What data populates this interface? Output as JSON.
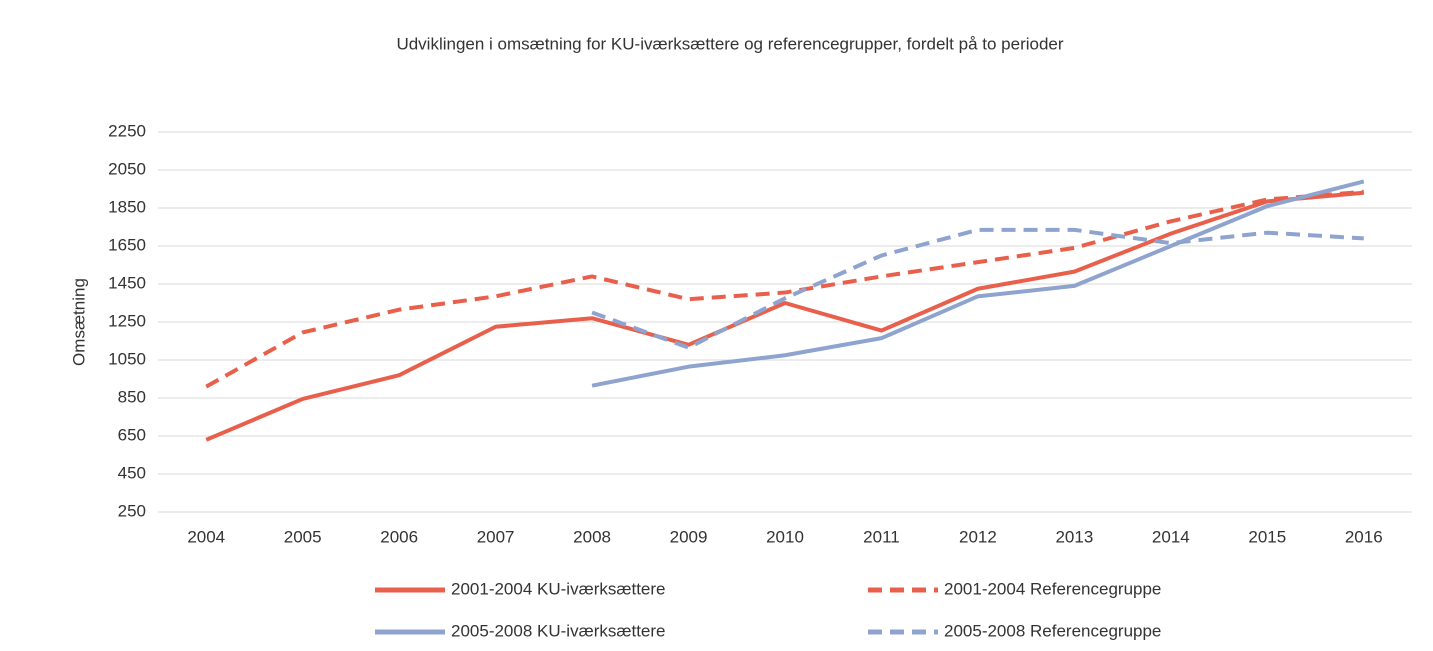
{
  "chart_data": {
    "type": "line",
    "title": "Udviklingen i omsætning for KU-iværksættere og referencegrupper, fordelt på to perioder",
    "y_label": "Omsætning",
    "categories": [
      "2004",
      "2005",
      "2006",
      "2007",
      "2008",
      "2009",
      "2010",
      "2011",
      "2012",
      "2013",
      "2014",
      "2015",
      "2016"
    ],
    "series": [
      {
        "name": "2001-2004 KU-iværksættere",
        "color": "#e8604c",
        "dashed": false,
        "values": [
          630,
          845,
          970,
          1225,
          1270,
          1130,
          1350,
          1205,
          1425,
          1515,
          1715,
          1885,
          1930
        ]
      },
      {
        "name": "2001-2004 Referencegruppe",
        "color": "#e8604c",
        "dashed": true,
        "values": [
          910,
          1195,
          1315,
          1385,
          1490,
          1370,
          1405,
          1490,
          1565,
          1640,
          1780,
          1895,
          1935
        ]
      },
      {
        "name": "2005-2008 KU-iværksættere",
        "color": "#8fa3cf",
        "dashed": false,
        "values": [
          null,
          null,
          null,
          null,
          915,
          1015,
          1075,
          1165,
          1385,
          1440,
          1650,
          1860,
          1990
        ]
      },
      {
        "name": "2005-2008 Referencegruppe",
        "color": "#8fa3cf",
        "dashed": true,
        "values": [
          null,
          null,
          null,
          null,
          1300,
          1115,
          1375,
          1600,
          1735,
          1735,
          1665,
          1720,
          1690
        ]
      }
    ],
    "ylim": [
      250,
      2250
    ],
    "yticks": [
      250,
      450,
      650,
      850,
      1050,
      1250,
      1450,
      1650,
      1850,
      2050,
      2250
    ],
    "grid": true,
    "legend": "bottom"
  }
}
